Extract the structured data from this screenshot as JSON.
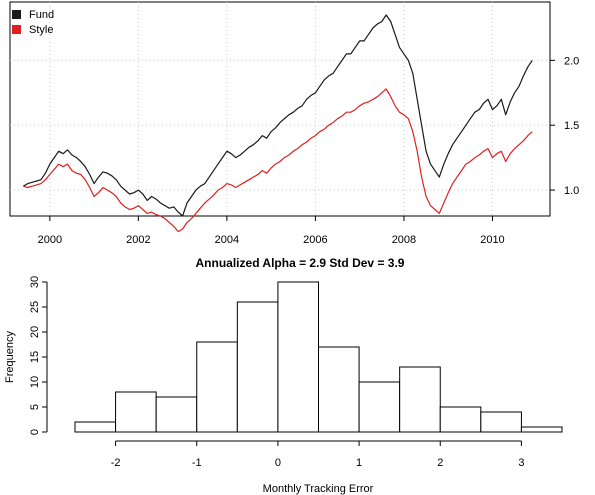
{
  "chart_data": [
    {
      "type": "line",
      "x": [
        1999.4,
        1999.5,
        1999.6,
        1999.7,
        1999.8,
        1999.9,
        2000.0,
        2000.1,
        2000.2,
        2000.3,
        2000.4,
        2000.5,
        2000.6,
        2000.7,
        2000.8,
        2000.9,
        2001.0,
        2001.1,
        2001.2,
        2001.3,
        2001.4,
        2001.5,
        2001.6,
        2001.7,
        2001.8,
        2001.9,
        2002.0,
        2002.1,
        2002.2,
        2002.3,
        2002.4,
        2002.5,
        2002.6,
        2002.7,
        2002.8,
        2002.9,
        2003.0,
        2003.1,
        2003.2,
        2003.3,
        2003.4,
        2003.5,
        2003.6,
        2003.7,
        2003.8,
        2003.9,
        2004.0,
        2004.1,
        2004.2,
        2004.3,
        2004.4,
        2004.5,
        2004.6,
        2004.7,
        2004.8,
        2004.9,
        2005.0,
        2005.1,
        2005.2,
        2005.3,
        2005.4,
        2005.5,
        2005.6,
        2005.7,
        2005.8,
        2005.9,
        2006.0,
        2006.1,
        2006.2,
        2006.3,
        2006.4,
        2006.5,
        2006.6,
        2006.7,
        2006.8,
        2006.9,
        2007.0,
        2007.1,
        2007.2,
        2007.3,
        2007.4,
        2007.5,
        2007.6,
        2007.7,
        2007.8,
        2007.9,
        2008.0,
        2008.1,
        2008.2,
        2008.3,
        2008.4,
        2008.5,
        2008.6,
        2008.7,
        2008.8,
        2008.9,
        2009.0,
        2009.1,
        2009.2,
        2009.3,
        2009.4,
        2009.5,
        2009.6,
        2009.7,
        2009.8,
        2009.9,
        2010.0,
        2010.1,
        2010.2,
        2010.3,
        2010.4,
        2010.5,
        2010.6,
        2010.7,
        2010.8,
        2010.9
      ],
      "series": [
        {
          "name": "Fund",
          "color": "#1a1a1a",
          "values": [
            1.03,
            1.05,
            1.06,
            1.07,
            1.08,
            1.13,
            1.2,
            1.25,
            1.3,
            1.28,
            1.31,
            1.27,
            1.25,
            1.22,
            1.18,
            1.12,
            1.05,
            1.1,
            1.14,
            1.13,
            1.11,
            1.08,
            1.03,
            1.0,
            0.97,
            0.98,
            1.0,
            0.97,
            0.92,
            0.95,
            0.93,
            0.9,
            0.88,
            0.86,
            0.87,
            0.83,
            0.8,
            0.9,
            0.95,
            1.0,
            1.03,
            1.05,
            1.1,
            1.15,
            1.2,
            1.25,
            1.3,
            1.28,
            1.25,
            1.27,
            1.3,
            1.33,
            1.35,
            1.38,
            1.42,
            1.4,
            1.45,
            1.48,
            1.52,
            1.55,
            1.58,
            1.6,
            1.63,
            1.65,
            1.7,
            1.73,
            1.75,
            1.8,
            1.85,
            1.88,
            1.9,
            1.95,
            2.0,
            2.05,
            2.05,
            2.1,
            2.15,
            2.15,
            2.2,
            2.25,
            2.28,
            2.3,
            2.35,
            2.3,
            2.2,
            2.1,
            2.05,
            2.0,
            1.9,
            1.7,
            1.5,
            1.3,
            1.2,
            1.15,
            1.1,
            1.2,
            1.28,
            1.35,
            1.4,
            1.45,
            1.5,
            1.55,
            1.6,
            1.62,
            1.67,
            1.7,
            1.62,
            1.65,
            1.7,
            1.58,
            1.68,
            1.75,
            1.8,
            1.88,
            1.95,
            2.0
          ]
        },
        {
          "name": "Style",
          "color": "#e02020",
          "values": [
            1.03,
            1.02,
            1.03,
            1.04,
            1.05,
            1.08,
            1.12,
            1.16,
            1.2,
            1.18,
            1.2,
            1.15,
            1.13,
            1.12,
            1.08,
            1.02,
            0.95,
            0.98,
            1.02,
            1.0,
            0.98,
            0.95,
            0.9,
            0.87,
            0.85,
            0.86,
            0.88,
            0.85,
            0.82,
            0.83,
            0.81,
            0.8,
            0.78,
            0.75,
            0.72,
            0.68,
            0.7,
            0.75,
            0.78,
            0.82,
            0.86,
            0.9,
            0.93,
            0.96,
            1.0,
            1.02,
            1.05,
            1.04,
            1.02,
            1.04,
            1.06,
            1.08,
            1.1,
            1.12,
            1.15,
            1.13,
            1.17,
            1.2,
            1.22,
            1.25,
            1.27,
            1.3,
            1.32,
            1.35,
            1.37,
            1.4,
            1.42,
            1.45,
            1.47,
            1.5,
            1.52,
            1.55,
            1.57,
            1.6,
            1.6,
            1.62,
            1.65,
            1.67,
            1.68,
            1.7,
            1.72,
            1.75,
            1.78,
            1.72,
            1.65,
            1.6,
            1.58,
            1.55,
            1.45,
            1.3,
            1.1,
            0.95,
            0.88,
            0.85,
            0.82,
            0.9,
            0.98,
            1.05,
            1.1,
            1.15,
            1.2,
            1.22,
            1.25,
            1.27,
            1.3,
            1.32,
            1.25,
            1.28,
            1.3,
            1.22,
            1.28,
            1.32,
            1.35,
            1.38,
            1.42,
            1.45
          ]
        }
      ],
      "xlim": [
        1999.1,
        2011.3
      ],
      "ylim": [
        0.8,
        2.45
      ],
      "xticks": [
        2000,
        2002,
        2004,
        2006,
        2008,
        2010
      ],
      "xtick_labels": [
        "2000",
        "2002",
        "2004",
        "2006",
        "2008",
        "2010"
      ],
      "yticks": [
        1.0,
        1.5,
        2.0
      ],
      "ytick_labels": [
        "1.0",
        "1.5",
        "2.0"
      ],
      "y_axis_side": "right",
      "grid": true,
      "legend_position": "top-left"
    },
    {
      "type": "bar",
      "title": "Annualized Alpha = 2.9 Std Dev = 3.9",
      "xlabel": "Monthly Tracking Error",
      "ylabel": "Frequency",
      "bins": [
        {
          "from": -2.5,
          "to": -2.0,
          "count": 2
        },
        {
          "from": -2.0,
          "to": -1.5,
          "count": 8
        },
        {
          "from": -1.5,
          "to": -1.0,
          "count": 7
        },
        {
          "from": -1.0,
          "to": -0.5,
          "count": 18
        },
        {
          "from": -0.5,
          "to": 0.0,
          "count": 26
        },
        {
          "from": 0.0,
          "to": 0.5,
          "count": 30
        },
        {
          "from": 0.5,
          "to": 1.0,
          "count": 17
        },
        {
          "from": 1.0,
          "to": 1.5,
          "count": 10
        },
        {
          "from": 1.5,
          "to": 2.0,
          "count": 13
        },
        {
          "from": 2.0,
          "to": 2.5,
          "count": 5
        },
        {
          "from": 2.5,
          "to": 3.0,
          "count": 4
        },
        {
          "from": 3.0,
          "to": 3.5,
          "count": 1
        }
      ],
      "xlim": [
        -2.5,
        3.5
      ],
      "ylim": [
        0,
        30
      ],
      "xticks": [
        -2,
        -1,
        0,
        1,
        2,
        3
      ],
      "xtick_labels": [
        "-2",
        "-1",
        "0",
        "1",
        "2",
        "3"
      ],
      "yticks": [
        0,
        5,
        10,
        15,
        20,
        25,
        30
      ],
      "ytick_labels": [
        "0",
        "5",
        "10",
        "15",
        "20",
        "25",
        "30"
      ],
      "bar_fill": "#ffffff",
      "bar_stroke": "#000000"
    }
  ]
}
